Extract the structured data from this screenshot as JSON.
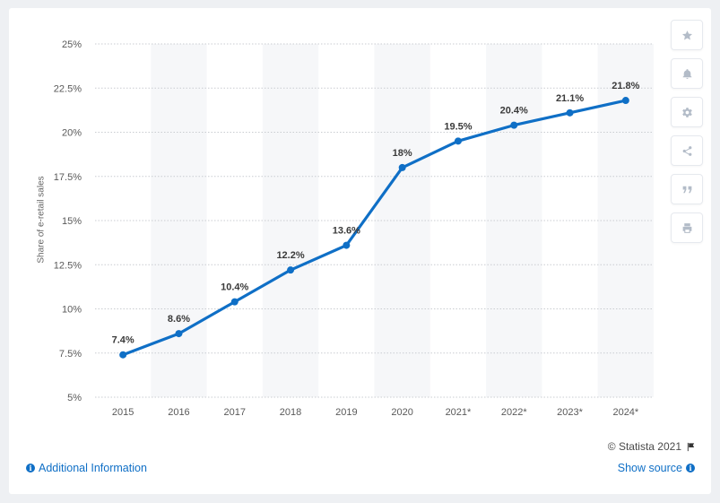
{
  "chart_data": {
    "type": "line",
    "categories": [
      "2015",
      "2016",
      "2017",
      "2018",
      "2019",
      "2020",
      "2021*",
      "2022*",
      "2023*",
      "2024*"
    ],
    "values": [
      7.4,
      8.6,
      10.4,
      12.2,
      13.6,
      18,
      19.5,
      20.4,
      21.1,
      21.8
    ],
    "data_labels": [
      "7.4%",
      "8.6%",
      "10.4%",
      "12.2%",
      "13.6%",
      "18%",
      "19.5%",
      "20.4%",
      "21.1%",
      "21.8%"
    ],
    "ylim": [
      5,
      25
    ],
    "yticks": [
      5,
      7.5,
      10,
      12.5,
      15,
      17.5,
      20,
      22.5,
      25
    ],
    "ytick_labels": [
      "5%",
      "7.5%",
      "10%",
      "12.5%",
      "15%",
      "17.5%",
      "20%",
      "22.5%",
      "25%"
    ],
    "ylabel": "Share of e-retail sales",
    "xlabel": "",
    "grid": true,
    "line_color": "#0f6fc6"
  },
  "footer": {
    "credit": "© Statista 2021",
    "additional_info": "Additional Information",
    "show_source": "Show source"
  },
  "toolbar": {
    "icons": [
      "star-icon",
      "bell-icon",
      "gear-icon",
      "share-icon",
      "quote-icon",
      "print-icon"
    ]
  }
}
